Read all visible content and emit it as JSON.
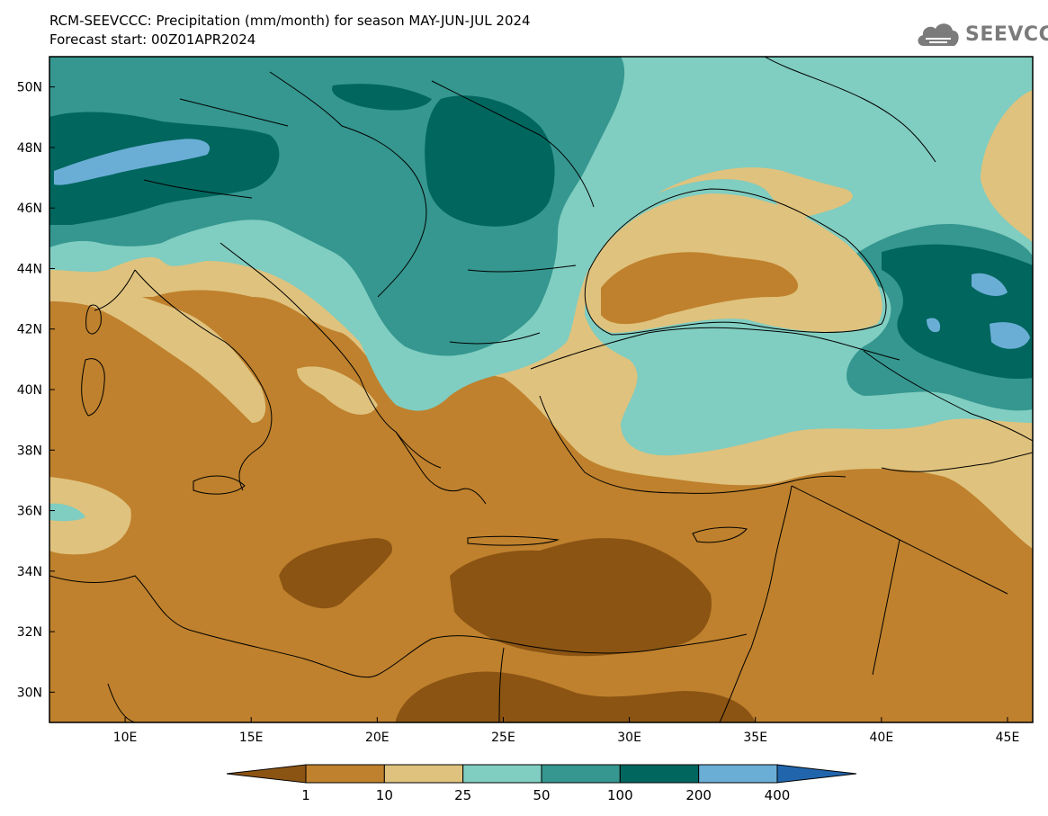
{
  "header": {
    "title": "RCM-SEEVCCC: Precipitation (mm/month) for season MAY-JUN-JUL 2024",
    "subtitle": "Forecast start: 00Z01APR2024"
  },
  "logo": {
    "text": "SEEVCCC",
    "icon": "cloud-icon"
  },
  "map": {
    "lon_range": [
      7,
      46
    ],
    "lat_range": [
      29,
      51
    ],
    "lat_ticks": [
      "50N",
      "48N",
      "46N",
      "44N",
      "42N",
      "40N",
      "38N",
      "36N",
      "34N",
      "32N",
      "30N"
    ],
    "lon_ticks": [
      "10E",
      "15E",
      "20E",
      "25E",
      "30E",
      "35E",
      "40E",
      "45E"
    ]
  },
  "colorbar": {
    "labels": [
      "1",
      "10",
      "25",
      "50",
      "100",
      "200",
      "400"
    ],
    "colors": [
      "#8b5413",
      "#bf812d",
      "#dfc27d",
      "#80cdc1",
      "#35978f",
      "#01665e",
      "#6aaed6",
      "#2166ac"
    ]
  }
}
